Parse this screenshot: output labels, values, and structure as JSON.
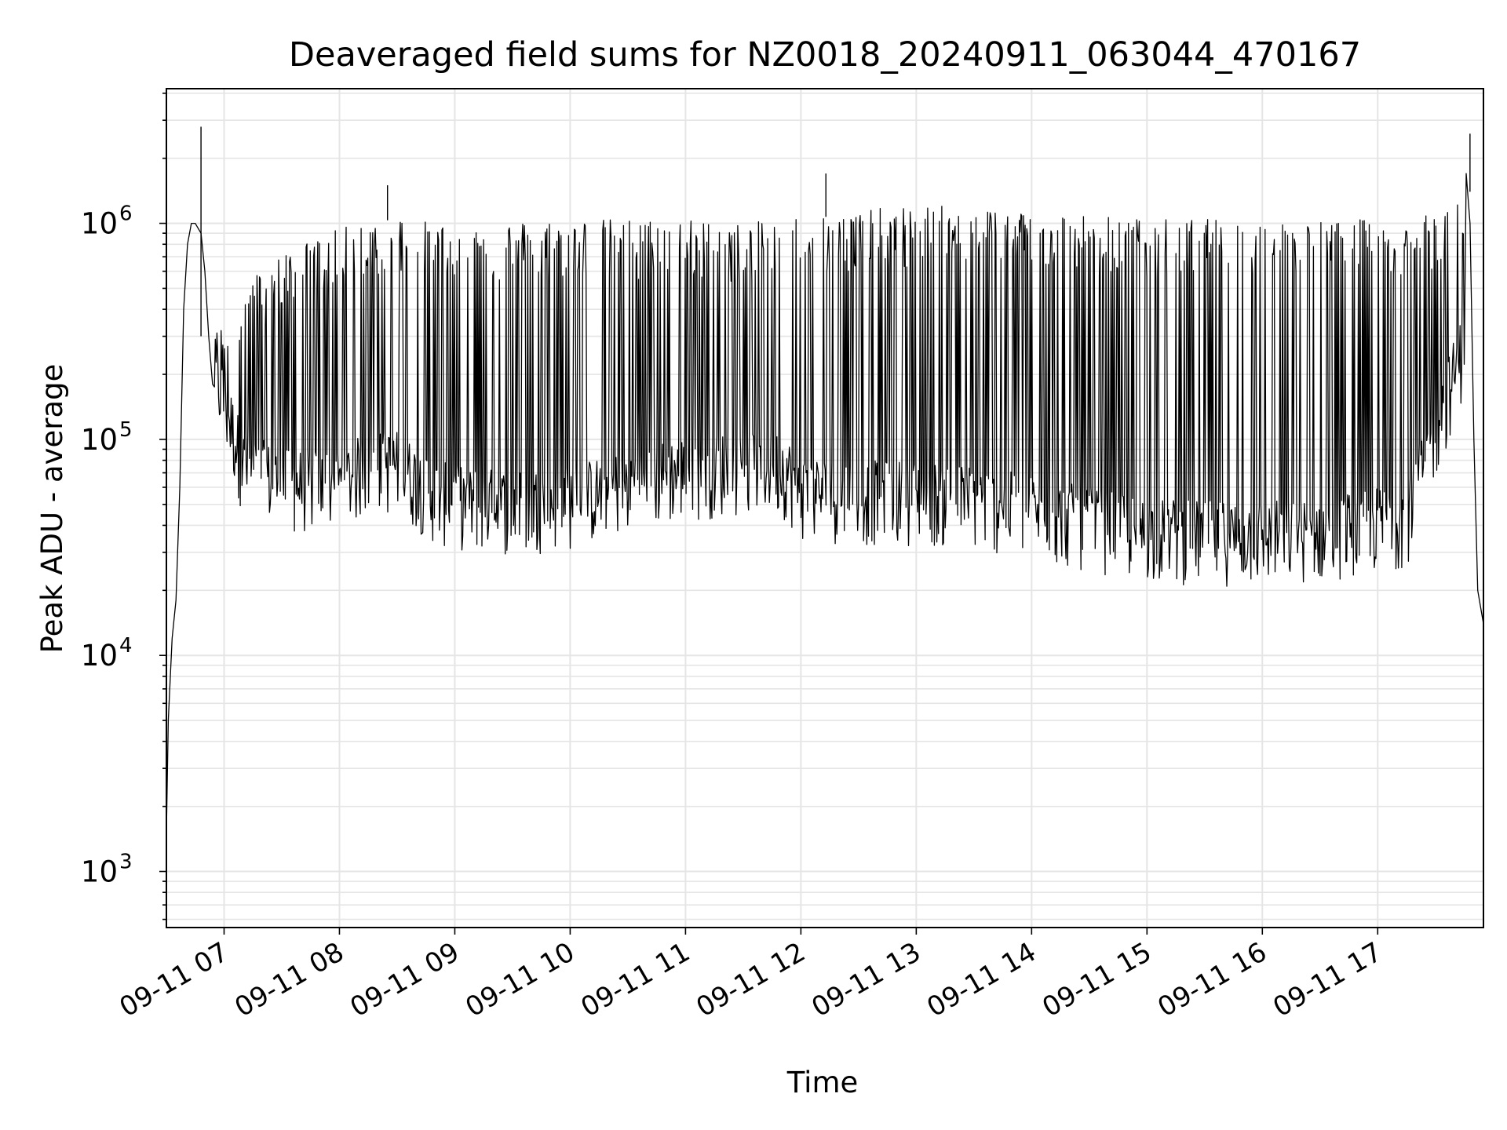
{
  "chart_data": {
    "type": "line",
    "title": "Deaveraged field sums for NZ0018_20240911_063044_470167",
    "xlabel": "Time",
    "ylabel": "Peak ADU - average",
    "x_range": [
      "2024-09-11 06:30",
      "2024-09-11 17:55"
    ],
    "y_scale": "log",
    "ylim": [
      550,
      4200000
    ],
    "grid": true,
    "line_color": "#000000",
    "grid_color": "#e5e5e5",
    "x_ticks": [
      {
        "value": "2024-09-11 07:00",
        "label": "09-11 07"
      },
      {
        "value": "2024-09-11 08:00",
        "label": "09-11 08"
      },
      {
        "value": "2024-09-11 09:00",
        "label": "09-11 09"
      },
      {
        "value": "2024-09-11 10:00",
        "label": "09-11 10"
      },
      {
        "value": "2024-09-11 11:00",
        "label": "09-11 11"
      },
      {
        "value": "2024-09-11 12:00",
        "label": "09-11 12"
      },
      {
        "value": "2024-09-11 13:00",
        "label": "09-11 13"
      },
      {
        "value": "2024-09-11 14:00",
        "label": "09-11 14"
      },
      {
        "value": "2024-09-11 15:00",
        "label": "09-11 15"
      },
      {
        "value": "2024-09-11 16:00",
        "label": "09-11 16"
      },
      {
        "value": "2024-09-11 17:00",
        "label": "09-11 17"
      }
    ],
    "y_ticks": [
      {
        "value": 1000,
        "base": "10",
        "exp": "3"
      },
      {
        "value": 10000,
        "base": "10",
        "exp": "4"
      },
      {
        "value": 100000,
        "base": "10",
        "exp": "5"
      },
      {
        "value": 1000000,
        "base": "10",
        "exp": "6"
      }
    ],
    "series": [
      {
        "x": [
          "2024-09-11 06:30",
          "2024-09-11 06:31",
          "2024-09-11 06:33",
          "2024-09-11 06:35",
          "2024-09-11 06:37",
          "2024-09-11 06:39",
          "2024-09-11 06:41",
          "2024-09-11 06:43",
          "2024-09-11 06:45",
          "2024-09-11 06:48",
          "2024-09-11 06:50",
          "2024-09-11 06:52",
          "2024-09-11 06:54",
          "2024-09-11 06:56",
          "2024-09-11 06:58",
          "2024-09-11 07:00",
          "2024-09-11 07:05",
          "2024-09-11 07:10",
          "2024-09-11 07:20",
          "2024-09-11 07:30",
          "2024-09-11 07:45",
          "2024-09-11 08:00",
          "2024-09-11 08:15",
          "2024-09-11 08:25",
          "2024-09-11 08:35",
          "2024-09-11 08:45",
          "2024-09-11 09:00",
          "2024-09-11 09:30",
          "2024-09-11 10:00",
          "2024-09-11 10:30",
          "2024-09-11 11:00",
          "2024-09-11 11:30",
          "2024-09-11 11:50",
          "2024-09-11 12:00",
          "2024-09-11 12:15",
          "2024-09-11 12:30",
          "2024-09-11 13:00",
          "2024-09-11 13:30",
          "2024-09-11 14:00",
          "2024-09-11 14:30",
          "2024-09-11 15:00",
          "2024-09-11 15:30",
          "2024-09-11 16:00",
          "2024-09-11 16:30",
          "2024-09-11 17:00",
          "2024-09-11 17:15",
          "2024-09-11 17:25",
          "2024-09-11 17:35",
          "2024-09-11 17:40",
          "2024-09-11 17:43",
          "2024-09-11 17:46",
          "2024-09-11 17:48",
          "2024-09-11 17:50",
          "2024-09-11 17:52",
          "2024-09-11 17:55"
        ],
        "y": [
          1500,
          5000,
          12000,
          18000,
          60000,
          400000,
          800000,
          1000000,
          1000000,
          900000,
          600000,
          300000,
          180000,
          130000,
          110000,
          95000,
          80000,
          70000,
          65000,
          60000,
          58000,
          70000,
          180000,
          200000,
          150000,
          80000,
          55000,
          50000,
          52000,
          50000,
          62000,
          70000,
          60000,
          55000,
          52000,
          50000,
          46000,
          42000,
          35000,
          30000,
          28000,
          27000,
          27000,
          30000,
          35000,
          50000,
          150000,
          400000,
          600000,
          900000,
          1700000,
          1000000,
          100000,
          20000,
          14000
        ]
      }
    ],
    "envelope": {
      "x": [
        "2024-09-11 06:55",
        "2024-09-11 07:10",
        "2024-09-11 07:30",
        "2024-09-11 08:00",
        "2024-09-11 08:15",
        "2024-09-11 08:30",
        "2024-09-11 08:50",
        "2024-09-11 09:00",
        "2024-09-11 09:30",
        "2024-09-11 10:00",
        "2024-09-11 10:30",
        "2024-09-11 11:00",
        "2024-09-11 11:30",
        "2024-09-11 11:50",
        "2024-09-11 12:00",
        "2024-09-11 12:30",
        "2024-09-11 13:00",
        "2024-09-11 13:30",
        "2024-09-11 14:00",
        "2024-09-11 14:30",
        "2024-09-11 15:00",
        "2024-09-11 15:30",
        "2024-09-11 16:00",
        "2024-09-11 16:30",
        "2024-09-11 17:00",
        "2024-09-11 17:15",
        "2024-09-11 17:30",
        "2024-09-11 17:45"
      ],
      "low": [
        150000,
        55000,
        45000,
        45000,
        55000,
        55000,
        40000,
        38000,
        36000,
        38000,
        45000,
        52000,
        55000,
        55000,
        42000,
        40000,
        40000,
        38000,
        34000,
        30000,
        27000,
        26000,
        26000,
        27000,
        30000,
        32000,
        80000,
        200000
      ],
      "high": [
        300000,
        500000,
        700000,
        900000,
        1000000,
        1050000,
        950000,
        950000,
        980000,
        1000000,
        1000000,
        1000000,
        950000,
        1000000,
        1050000,
        1100000,
        1150000,
        1150000,
        1100000,
        1050000,
        1000000,
        1000000,
        980000,
        980000,
        1000000,
        1000000,
        1050000,
        1400000
      ]
    },
    "spikes": [
      {
        "x": "2024-09-11 06:48",
        "y": 2800000
      },
      {
        "x": "2024-09-11 08:25",
        "y": 1500000
      },
      {
        "x": "2024-09-11 12:13",
        "y": 1700000
      },
      {
        "x": "2024-09-11 17:48",
        "y": 2600000
      }
    ]
  }
}
